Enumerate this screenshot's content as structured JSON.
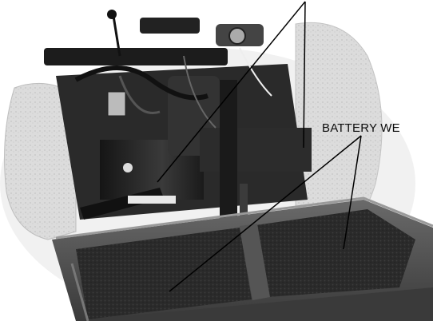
{
  "figure": {
    "callout_label": "BATTERY WE",
    "description_name": "photo-battery-well",
    "colors": {
      "background": "#ffffff",
      "metal_dark": "#1e1e1e",
      "tire": "#d9d9d9",
      "tray": "#4a4a4a",
      "tray_floor": "#2b2b2b",
      "leader_lines": "#000000"
    }
  }
}
